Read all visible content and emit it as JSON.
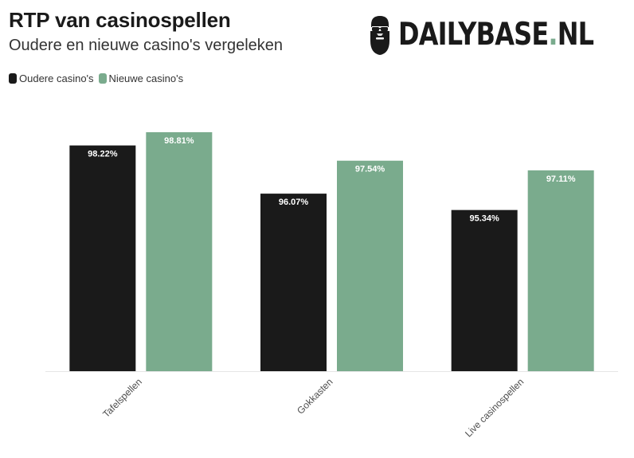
{
  "header": {
    "title": "RTP van casinospellen",
    "subtitle": "Oudere en nieuwe casino's vergeleken"
  },
  "logo": {
    "text": "DAILYBASE.NL",
    "icon": "bearded-man-sunglasses-icon",
    "accent": "#7aab8d"
  },
  "legend": [
    {
      "label": "Oudere casino's",
      "color": "#1a1a1a"
    },
    {
      "label": "Nieuwe casino's",
      "color": "#7aab8d"
    }
  ],
  "chart_data": {
    "type": "bar",
    "categories": [
      "Tafelspellen",
      "Gokkasten",
      "Live casinospellen"
    ],
    "series": [
      {
        "name": "Oudere casino's",
        "color": "#1a1a1a",
        "values": [
          98.22,
          96.07,
          95.34
        ],
        "labels": [
          "98.22%",
          "96.07%",
          "95.34%"
        ]
      },
      {
        "name": "Nieuwe casino's",
        "color": "#7aab8d",
        "values": [
          98.81,
          97.54,
          97.11
        ],
        "labels": [
          "98.81%",
          "97.54%",
          "97.11%"
        ]
      }
    ],
    "title": "RTP van casinospellen",
    "subtitle": "Oudere en nieuwe casino's vergeleken",
    "ylim": [
      88.15,
      99.71
    ],
    "grid": false,
    "legend_position": "top-left",
    "xtick_rotation": -45
  }
}
